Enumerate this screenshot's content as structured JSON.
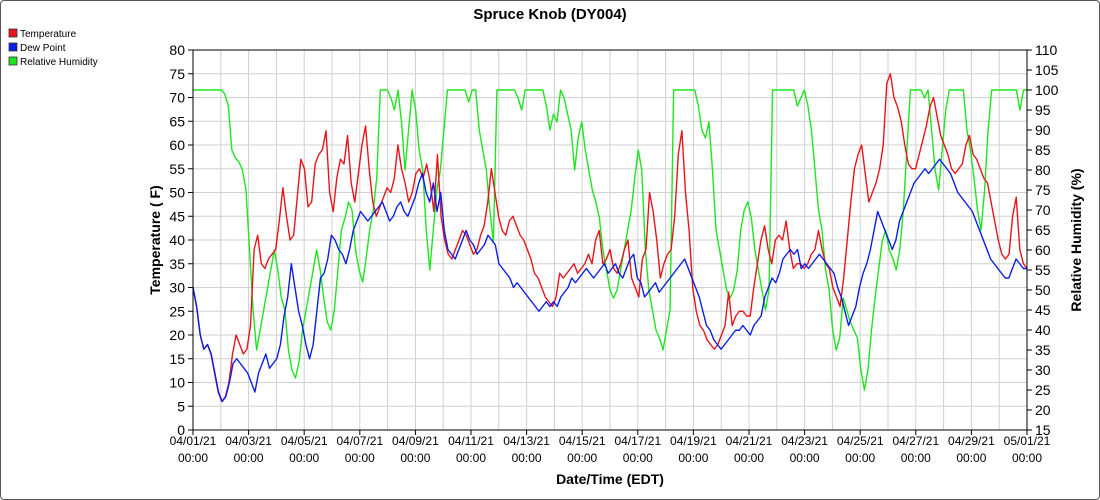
{
  "chart_data": {
    "type": "line",
    "title": "Spruce Knob (DY004)",
    "xlabel": "Date/Time (EDT)",
    "ylabel": "Temperature ( F)",
    "y2label": "Relative Humidity (%)",
    "ylim": [
      0,
      80
    ],
    "y2lim": [
      15,
      110
    ],
    "yticks": [
      "0",
      "5",
      "10",
      "15",
      "20",
      "25",
      "30",
      "35",
      "40",
      "45",
      "50",
      "55",
      "60",
      "65",
      "70",
      "75",
      "80"
    ],
    "y2ticks": [
      "15",
      "20",
      "25",
      "30",
      "35",
      "40",
      "45",
      "50",
      "55",
      "60",
      "65",
      "70",
      "75",
      "80",
      "85",
      "90",
      "95",
      "100",
      "105",
      "110"
    ],
    "xticks": [
      {
        "date": "04/01/21",
        "time": "00:00"
      },
      {
        "date": "04/03/21",
        "time": "00:00"
      },
      {
        "date": "04/05/21",
        "time": "00:00"
      },
      {
        "date": "04/07/21",
        "time": "00:00"
      },
      {
        "date": "04/09/21",
        "time": "00:00"
      },
      {
        "date": "04/11/21",
        "time": "00:00"
      },
      {
        "date": "04/13/21",
        "time": "00:00"
      },
      {
        "date": "04/15/21",
        "time": "00:00"
      },
      {
        "date": "04/17/21",
        "time": "00:00"
      },
      {
        "date": "04/19/21",
        "time": "00:00"
      },
      {
        "date": "04/21/21",
        "time": "00:00"
      },
      {
        "date": "04/23/21",
        "time": "00:00"
      },
      {
        "date": "04/25/21",
        "time": "00:00"
      },
      {
        "date": "04/27/21",
        "time": "00:00"
      },
      {
        "date": "04/29/21",
        "time": "00:00"
      },
      {
        "date": "05/01/21",
        "time": "00:00"
      }
    ],
    "grid": true,
    "legend_position": "top-left",
    "series": [
      {
        "name": "Temperature",
        "color": "#e8141c",
        "axis": "left",
        "values": [
          30,
          26,
          20,
          17,
          18,
          16,
          12,
          8,
          6,
          7,
          10,
          16,
          20,
          18,
          16,
          17,
          22,
          38,
          41,
          35,
          34,
          36,
          37,
          38,
          44,
          51,
          45,
          40,
          41,
          49,
          57,
          55,
          47,
          48,
          56,
          58,
          59,
          63,
          50,
          46,
          53,
          57,
          56,
          62,
          52,
          48,
          54,
          60,
          64,
          55,
          48,
          45,
          47,
          49,
          51,
          50,
          53,
          60,
          55,
          52,
          48,
          50,
          54,
          55,
          53,
          56,
          52,
          46,
          58,
          45,
          40,
          37,
          36,
          38,
          40,
          42,
          41,
          39,
          37,
          38,
          41,
          43,
          48,
          55,
          50,
          45,
          42,
          41,
          44,
          45,
          43,
          41,
          40,
          38,
          36,
          33,
          32,
          30,
          28,
          27,
          26,
          28,
          33,
          32,
          33,
          34,
          35,
          33,
          34,
          35,
          37,
          35,
          40,
          42,
          35,
          36,
          38,
          34,
          33,
          35,
          38,
          40,
          32,
          30,
          28,
          36,
          38,
          50,
          46,
          40,
          32,
          35,
          37,
          38,
          45,
          58,
          63,
          50,
          42,
          30,
          25,
          22,
          21,
          19,
          18,
          17,
          18,
          20,
          22,
          29,
          22,
          24,
          25,
          25,
          24,
          24,
          30,
          35,
          40,
          43,
          38,
          35,
          40,
          41,
          40,
          44,
          38,
          34,
          35,
          35,
          34,
          35,
          37,
          38,
          42,
          38,
          35,
          34,
          30,
          28,
          26,
          32,
          40,
          48,
          55,
          58,
          60,
          54,
          48,
          50,
          52,
          55,
          60,
          73,
          75,
          70,
          68,
          65,
          60,
          56,
          55,
          55,
          58,
          61,
          64,
          68,
          70,
          66,
          62,
          60,
          58,
          55,
          54,
          55,
          56,
          60,
          62,
          58,
          57,
          55,
          53,
          52,
          48,
          44,
          40,
          37,
          36,
          37,
          45,
          49,
          38,
          35,
          34
        ]
      },
      {
        "name": "Dew Point",
        "color": "#0a1ee6",
        "axis": "left",
        "values": [
          30,
          26,
          20,
          17,
          18,
          16,
          12,
          8,
          6,
          7,
          10,
          14,
          15,
          14,
          13,
          12,
          10,
          8,
          12,
          14,
          16,
          13,
          14,
          15,
          18,
          24,
          28,
          35,
          30,
          25,
          22,
          18,
          15,
          18,
          25,
          32,
          33,
          36,
          41,
          40,
          38,
          37,
          35,
          38,
          42,
          44,
          46,
          45,
          44,
          45,
          46,
          47,
          48,
          46,
          44,
          45,
          47,
          48,
          46,
          45,
          47,
          49,
          52,
          54,
          50,
          48,
          52,
          46,
          50,
          42,
          38,
          37,
          36,
          38,
          40,
          42,
          40,
          39,
          37,
          38,
          39,
          41,
          40,
          39,
          35,
          34,
          33,
          32,
          30,
          31,
          30,
          29,
          28,
          27,
          26,
          25,
          26,
          27,
          26,
          27,
          26,
          28,
          29,
          30,
          32,
          31,
          32,
          33,
          34,
          33,
          32,
          33,
          34,
          35,
          33,
          34,
          35,
          33,
          32,
          34,
          36,
          37,
          32,
          31,
          28,
          29,
          30,
          31,
          29,
          30,
          31,
          32,
          33,
          34,
          35,
          36,
          34,
          32,
          30,
          28,
          25,
          22,
          21,
          19,
          18,
          17,
          18,
          19,
          20,
          21,
          21,
          22,
          21,
          20,
          22,
          23,
          24,
          28,
          30,
          32,
          31,
          33,
          36,
          37,
          38,
          37,
          38,
          34,
          35,
          34,
          35,
          36,
          37,
          36,
          35,
          34,
          33,
          30,
          28,
          25,
          22,
          24,
          26,
          30,
          33,
          35,
          38,
          42,
          46,
          44,
          42,
          40,
          38,
          40,
          44,
          46,
          48,
          50,
          52,
          53,
          54,
          55,
          54,
          55,
          56,
          57,
          56,
          55,
          54,
          52,
          50,
          49,
          48,
          47,
          46,
          44,
          42,
          40,
          38,
          36,
          35,
          34,
          33,
          32,
          32,
          34,
          36,
          35,
          34,
          34
        ]
      },
      {
        "name": "Relative Humidity",
        "color": "#1ee61e",
        "axis": "right",
        "values": [
          100,
          100,
          100,
          100,
          100,
          100,
          100,
          100,
          100,
          99,
          96,
          85,
          83,
          82,
          80,
          75,
          60,
          45,
          35,
          40,
          45,
          50,
          55,
          60,
          55,
          48,
          45,
          35,
          30,
          28,
          32,
          40,
          45,
          50,
          55,
          60,
          55,
          48,
          42,
          40,
          45,
          55,
          65,
          68,
          72,
          70,
          60,
          55,
          52,
          58,
          65,
          70,
          78,
          100,
          100,
          100,
          98,
          95,
          100,
          92,
          80,
          90,
          100,
          95,
          85,
          80,
          65,
          55,
          65,
          75,
          80,
          90,
          100,
          100,
          100,
          100,
          100,
          100,
          97,
          100,
          100,
          90,
          85,
          80,
          70,
          62,
          100,
          100,
          100,
          100,
          100,
          100,
          98,
          95,
          100,
          100,
          100,
          100,
          100,
          100,
          96,
          90,
          94,
          92,
          100,
          98,
          94,
          90,
          80,
          88,
          92,
          85,
          80,
          75,
          72,
          68,
          60,
          55,
          50,
          48,
          50,
          55,
          60,
          65,
          70,
          78,
          85,
          80,
          60,
          50,
          45,
          40,
          38,
          35,
          40,
          45,
          100,
          100,
          100,
          100,
          100,
          100,
          100,
          96,
          90,
          88,
          92,
          80,
          65,
          60,
          55,
          50,
          48,
          50,
          55,
          65,
          70,
          72,
          68,
          60,
          55,
          50,
          45,
          50,
          100,
          100,
          100,
          100,
          100,
          100,
          100,
          96,
          98,
          100,
          96,
          90,
          80,
          70,
          65,
          55,
          50,
          40,
          35,
          38,
          48,
          45,
          42,
          40,
          38,
          30,
          25,
          30,
          40,
          48,
          55,
          62,
          65,
          60,
          58,
          55,
          60,
          70,
          85,
          100,
          100,
          100,
          100,
          98,
          100,
          90,
          80,
          75,
          85,
          95,
          100,
          100,
          100,
          100,
          100,
          90,
          85,
          78,
          70,
          65,
          75,
          90,
          100,
          100,
          100,
          100,
          100,
          100,
          100,
          100,
          95,
          100,
          100
        ]
      }
    ]
  }
}
